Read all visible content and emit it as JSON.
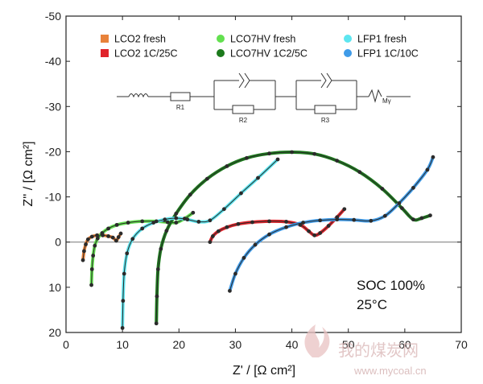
{
  "chart_data": {
    "type": "scatter",
    "xlabel": "Z' / [Ω cm²]",
    "ylabel": "Z'' / [Ω cm²]",
    "xlim": [
      0,
      70
    ],
    "ylim": [
      -50,
      20
    ],
    "y_inverted": true,
    "xticks": [
      0,
      10,
      20,
      30,
      40,
      50,
      60,
      70
    ],
    "yticks": [
      -50,
      -40,
      -30,
      -20,
      -10,
      0,
      10,
      20
    ],
    "legend_position": "top",
    "series": [
      {
        "name": "LCO2 fresh",
        "color": "#e8823a",
        "marker": "square",
        "fit_color": "#2b2b2b",
        "points": [
          [
            3.0,
            4.0
          ],
          [
            3.2,
            2.0
          ],
          [
            3.5,
            0.5
          ],
          [
            3.9,
            -0.6
          ],
          [
            4.6,
            -1.2
          ],
          [
            5.5,
            -1.5
          ],
          [
            6.5,
            -1.5
          ],
          [
            7.5,
            -1.3
          ],
          [
            8.3,
            -1.0
          ],
          [
            8.9,
            -0.3
          ],
          [
            9.3,
            -1.1
          ],
          [
            9.7,
            -1.9
          ]
        ]
      },
      {
        "name": "LCO2 1C/25C",
        "color": "#e0232b",
        "marker": "square",
        "fit_color": "#2b2b2b",
        "points": [
          [
            25.5,
            0.0
          ],
          [
            26.0,
            -1.3
          ],
          [
            27.0,
            -2.4
          ],
          [
            28.5,
            -3.3
          ],
          [
            30.5,
            -4.0
          ],
          [
            33.0,
            -4.4
          ],
          [
            36.0,
            -4.6
          ],
          [
            39.0,
            -4.5
          ],
          [
            41.5,
            -3.8
          ],
          [
            43.0,
            -2.4
          ],
          [
            44.0,
            -1.5
          ],
          [
            45.0,
            -2.0
          ],
          [
            46.5,
            -3.6
          ],
          [
            48.0,
            -5.5
          ],
          [
            49.3,
            -7.3
          ]
        ]
      },
      {
        "name": "LCO7HV fresh",
        "color": "#63e04f",
        "marker": "circle",
        "fit_color": "#2b2b2b",
        "points": [
          [
            4.5,
            9.5
          ],
          [
            4.6,
            6.0
          ],
          [
            4.8,
            3.0
          ],
          [
            5.1,
            0.8
          ],
          [
            5.6,
            -0.8
          ],
          [
            6.4,
            -2.0
          ],
          [
            7.5,
            -3.0
          ],
          [
            9.0,
            -3.8
          ],
          [
            11.0,
            -4.3
          ],
          [
            13.5,
            -4.6
          ],
          [
            16.0,
            -4.6
          ],
          [
            18.0,
            -4.4
          ],
          [
            19.5,
            -4.3
          ],
          [
            21.0,
            -5.2
          ],
          [
            22.5,
            -6.5
          ]
        ]
      },
      {
        "name": "LCO7HV 1C2/5C",
        "color": "#1c7a1c",
        "marker": "circle",
        "fit_color": "#2b2b2b",
        "points": [
          [
            16.0,
            18.0
          ],
          [
            16.1,
            12.0
          ],
          [
            16.3,
            6.0
          ],
          [
            16.8,
            1.5
          ],
          [
            17.8,
            -2.5
          ],
          [
            19.5,
            -6.3
          ],
          [
            22.0,
            -10.5
          ],
          [
            25.0,
            -14.0
          ],
          [
            28.5,
            -16.8
          ],
          [
            32.0,
            -18.6
          ],
          [
            36.0,
            -19.6
          ],
          [
            40.0,
            -19.9
          ],
          [
            44.0,
            -19.5
          ],
          [
            48.0,
            -18.0
          ],
          [
            52.0,
            -15.5
          ],
          [
            56.0,
            -11.8
          ],
          [
            59.5,
            -7.5
          ],
          [
            61.5,
            -5.0
          ],
          [
            63.0,
            -5.3
          ],
          [
            64.5,
            -5.9
          ]
        ]
      },
      {
        "name": "LFP1 fresh",
        "color": "#5de6f0",
        "marker": "circle",
        "fit_color": "#2b2b2b",
        "points": [
          [
            10.0,
            19.0
          ],
          [
            10.1,
            13.0
          ],
          [
            10.3,
            7.0
          ],
          [
            10.8,
            2.5
          ],
          [
            11.8,
            -0.7
          ],
          [
            13.5,
            -3.0
          ],
          [
            15.5,
            -4.3
          ],
          [
            17.5,
            -5.0
          ],
          [
            19.5,
            -5.3
          ],
          [
            21.5,
            -5.0
          ],
          [
            23.5,
            -4.5
          ],
          [
            25.5,
            -4.8
          ],
          [
            28.0,
            -7.3
          ],
          [
            31.0,
            -10.8
          ],
          [
            34.0,
            -14.2
          ],
          [
            37.5,
            -18.3
          ]
        ]
      },
      {
        "name": "LFP1 1C/10C",
        "color": "#3f9be8",
        "marker": "circle",
        "fit_color": "#2b2b2b",
        "points": [
          [
            29.0,
            10.8
          ],
          [
            30.0,
            7.0
          ],
          [
            31.5,
            3.5
          ],
          [
            33.5,
            0.6
          ],
          [
            36.0,
            -1.7
          ],
          [
            39.0,
            -3.3
          ],
          [
            42.0,
            -4.3
          ],
          [
            45.0,
            -4.8
          ],
          [
            48.0,
            -5.0
          ],
          [
            51.0,
            -4.9
          ],
          [
            54.0,
            -4.7
          ],
          [
            56.5,
            -5.8
          ],
          [
            59.0,
            -8.6
          ],
          [
            61.5,
            -12.0
          ],
          [
            64.0,
            -16.0
          ],
          [
            65.0,
            -18.8
          ]
        ]
      }
    ],
    "annotations": [
      "SOC 100%",
      "25°C"
    ],
    "circuit_labels": [
      "R1",
      "R2",
      "R3",
      "Mγ"
    ]
  },
  "watermark": {
    "text": "我的煤炭网",
    "url": "www.mycoal.cn"
  }
}
